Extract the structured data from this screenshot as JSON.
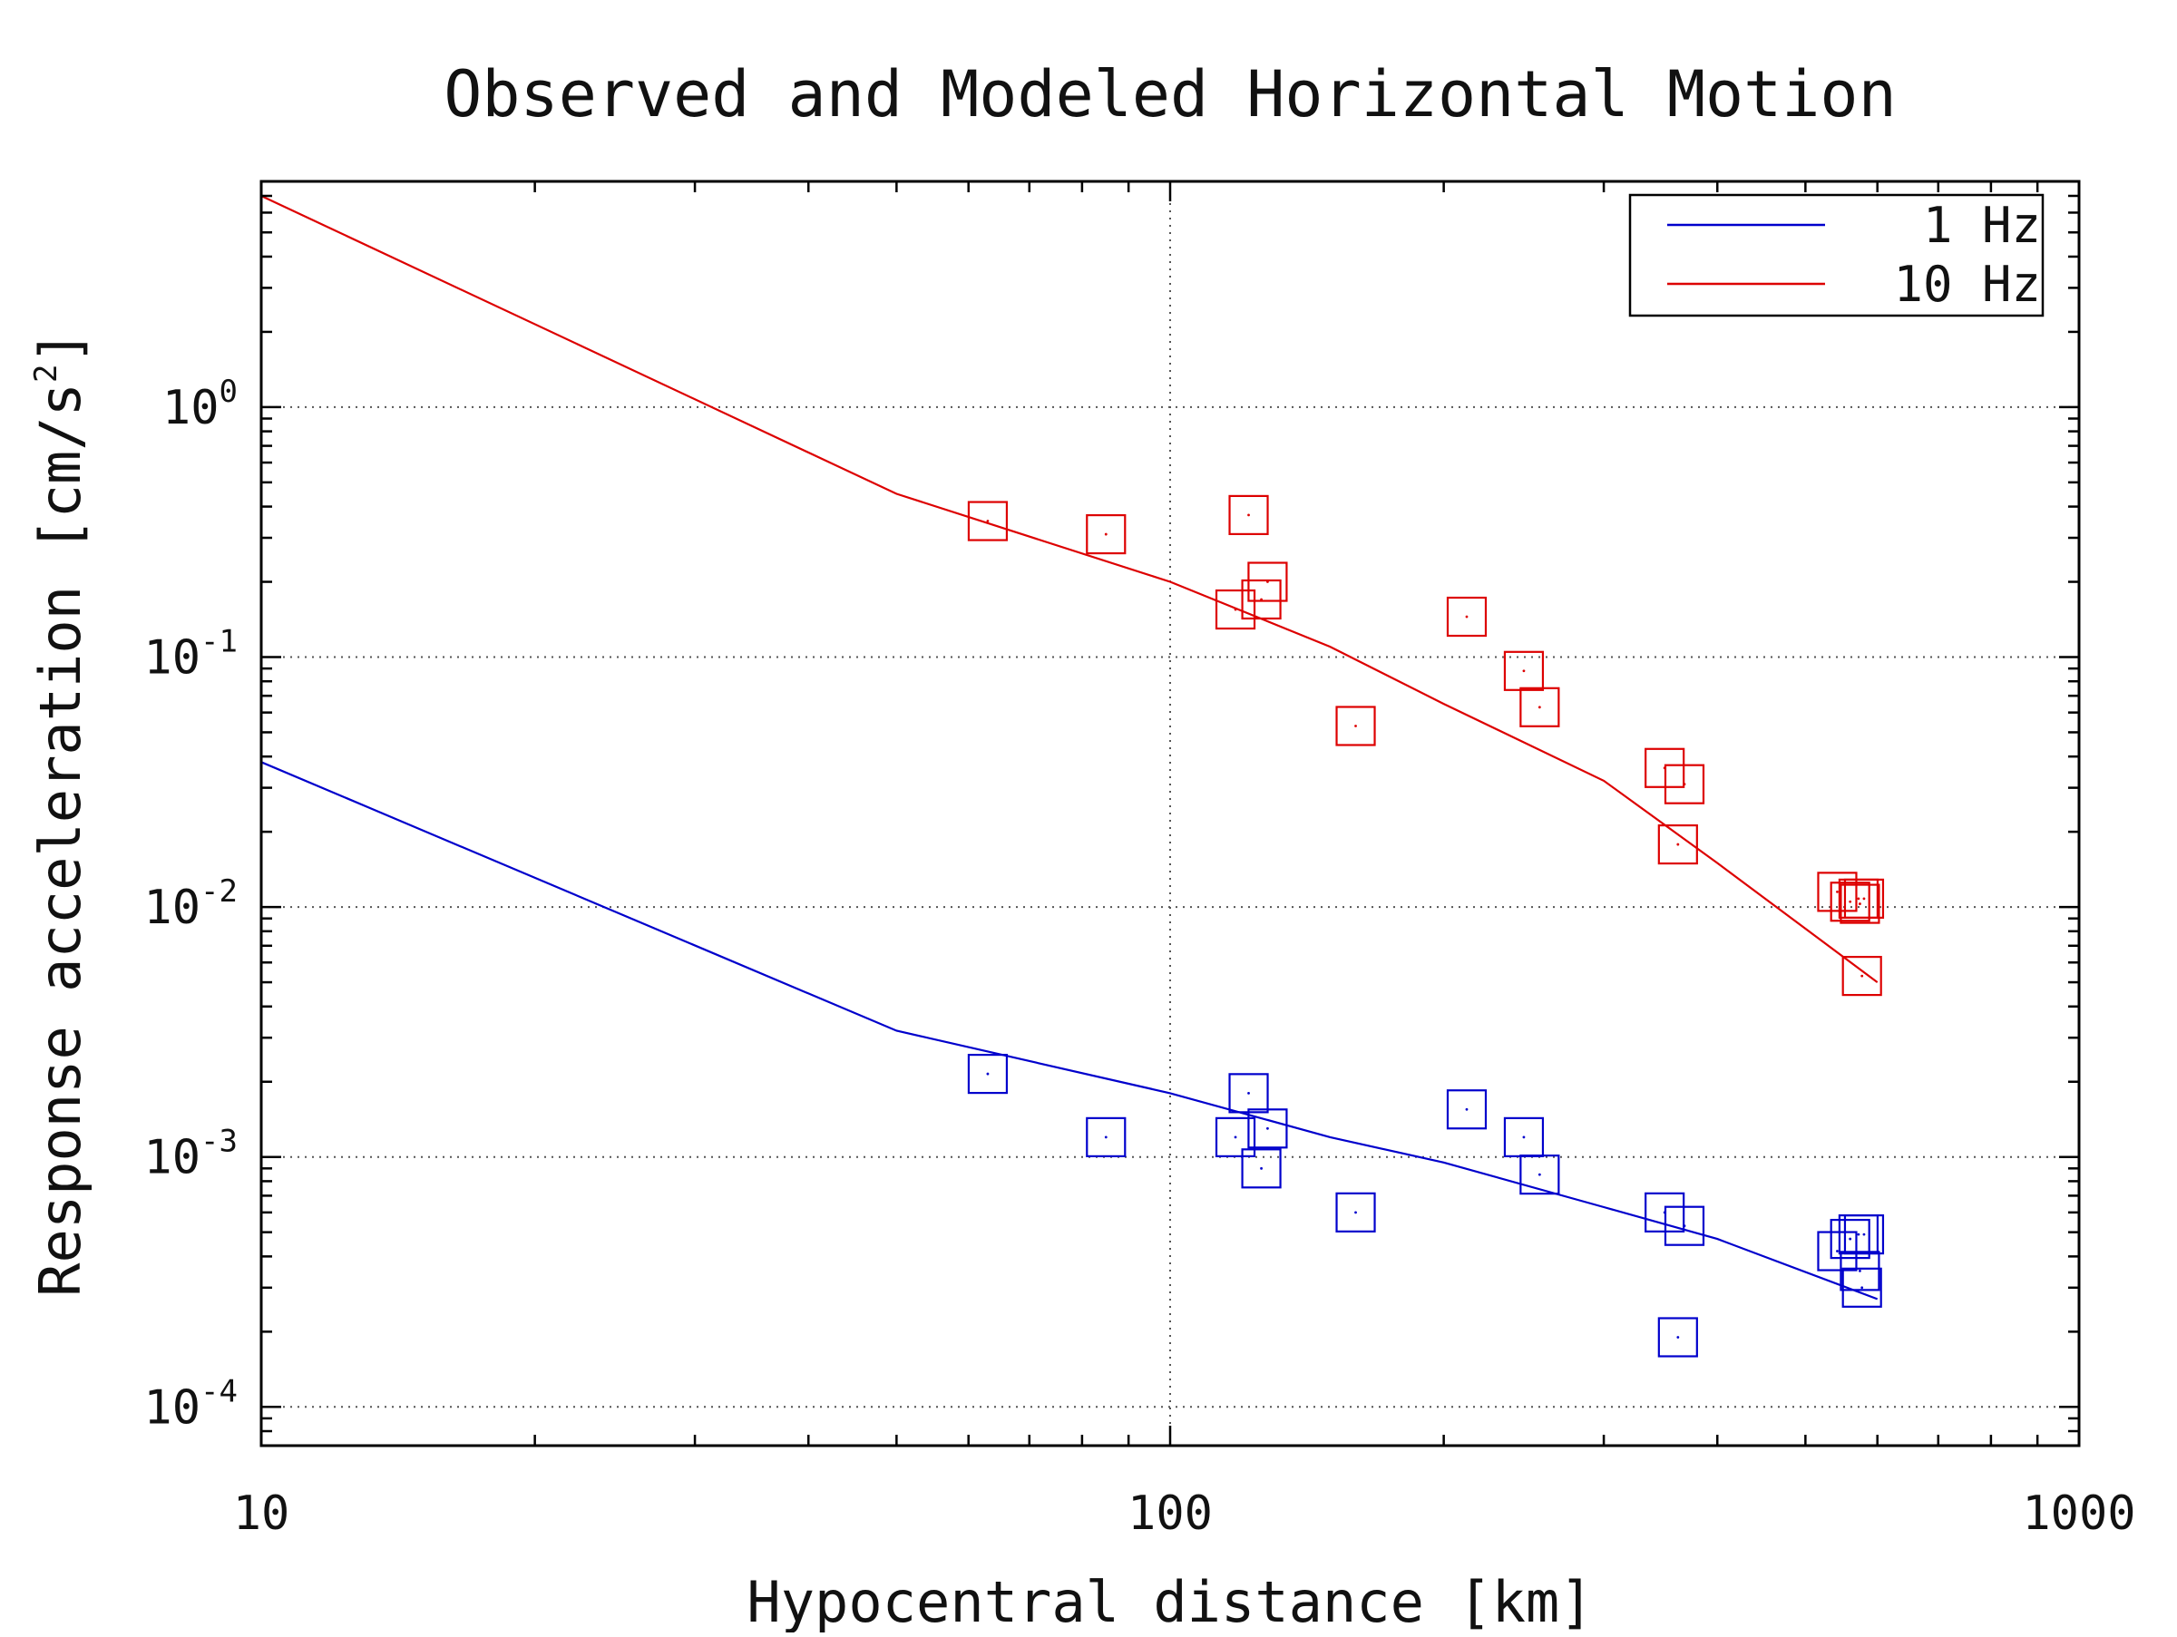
{
  "chart_data": {
    "type": "scatter",
    "title": "Observed and Modeled Horizontal Motion",
    "xlabel": "Hypocentral distance [km]",
    "ylabel": "Response acceleration [cm/s",
    "ylabel_sup": "2",
    "ylabel_end": "]",
    "xscale": "log",
    "yscale": "log",
    "xlim": [
      10,
      1000
    ],
    "ylim": [
      7e-05,
      8
    ],
    "x_ticks": [
      {
        "value": 10,
        "label": "10"
      },
      {
        "value": 100,
        "label": "100"
      },
      {
        "value": 1000,
        "label": "1000"
      }
    ],
    "y_ticks": [
      {
        "value": 1,
        "base": "10",
        "exp": "0"
      },
      {
        "value": 0.1,
        "base": "10",
        "exp": "-1"
      },
      {
        "value": 0.01,
        "base": "10",
        "exp": "-2"
      },
      {
        "value": 0.001,
        "base": "10",
        "exp": "-3"
      },
      {
        "value": 0.0001,
        "base": "10",
        "exp": "-4"
      }
    ],
    "grid": "dotted",
    "legend_position": "top-right",
    "series": [
      {
        "name": "1 Hz",
        "color": "#0000cc",
        "model": {
          "x": [
            10,
            50,
            100,
            150,
            200,
            300,
            400,
            600
          ],
          "y": [
            0.038,
            0.0032,
            0.0018,
            0.0012,
            0.00095,
            0.00063,
            0.00047,
            0.00027
          ]
        },
        "observed": {
          "x": [
            63,
            85,
            118,
            122,
            126,
            128,
            160,
            212,
            245,
            255,
            350,
            368,
            362,
            542,
            560,
            572,
            574,
            577,
            580
          ],
          "y": [
            0.00215,
            0.0012,
            0.0012,
            0.0018,
            0.0009,
            0.0013,
            0.0006,
            0.00155,
            0.0012,
            0.00085,
            0.0006,
            0.00053,
            0.00019,
            0.00042,
            0.00047,
            0.00049,
            0.00035,
            0.0003,
            0.00049
          ]
        }
      },
      {
        "name": "10 Hz",
        "color": "#dd0000",
        "model": {
          "x": [
            10,
            50,
            100,
            150,
            200,
            300,
            400,
            600
          ],
          "y": [
            7.0,
            0.45,
            0.2,
            0.11,
            0.065,
            0.032,
            0.015,
            0.005
          ]
        },
        "observed": {
          "x": [
            63,
            85,
            118,
            122,
            126,
            128,
            160,
            212,
            245,
            255,
            350,
            368,
            362,
            542,
            560,
            572,
            574,
            577,
            580
          ],
          "y": [
            0.35,
            0.31,
            0.155,
            0.37,
            0.17,
            0.2,
            0.053,
            0.145,
            0.088,
            0.063,
            0.036,
            0.031,
            0.0178,
            0.0115,
            0.0105,
            0.0108,
            0.0103,
            0.0053,
            0.0108
          ]
        }
      }
    ]
  }
}
